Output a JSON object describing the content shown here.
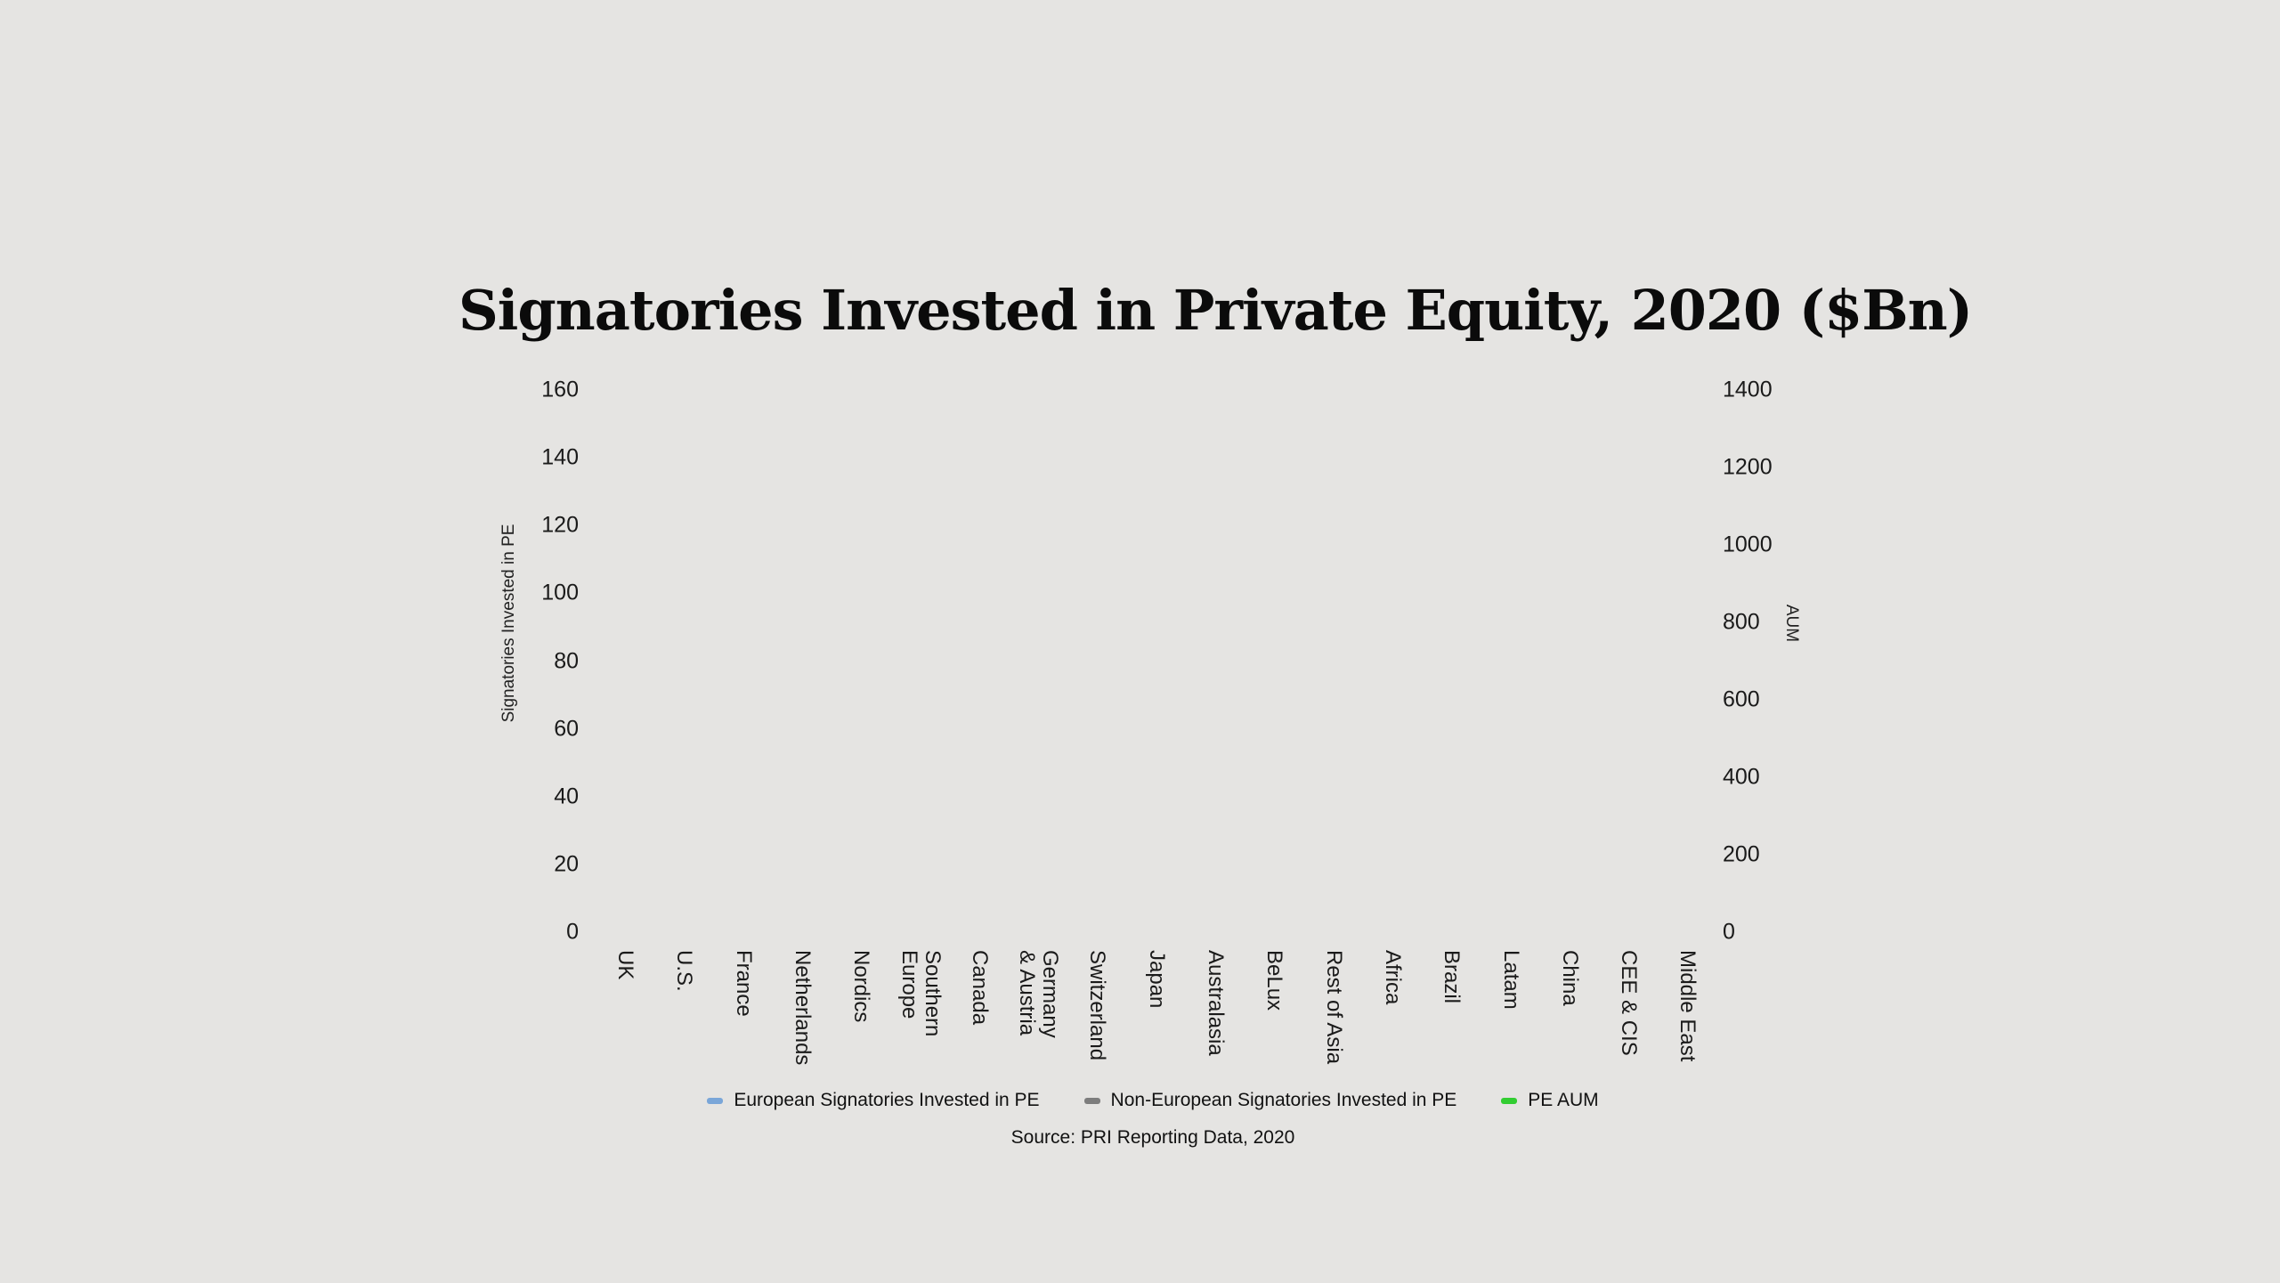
{
  "title": "Signatories Invested in Private Equity, 2020 ($Bn)",
  "source": "Source: PRI Reporting Data, 2020",
  "colors": {
    "background": "#e5e4e2",
    "title_text": "#0b0b0b",
    "axis_text": "#1a1a1a",
    "legend_blue": "#7aa6d8",
    "legend_gray": "#7d7d7d",
    "legend_green": "#32cd32"
  },
  "left_axis": {
    "title": "Signatories Invested in PE",
    "ticks": [
      "0",
      "20",
      "40",
      "60",
      "80",
      "100",
      "120",
      "140",
      "160"
    ]
  },
  "right_axis": {
    "title": "AUM",
    "ticks": [
      "0",
      "200",
      "400",
      "600",
      "800",
      "1000",
      "1200",
      "1400"
    ]
  },
  "x_axis": {
    "categories": [
      [
        "UK"
      ],
      [
        "U.S."
      ],
      [
        "France"
      ],
      [
        "Netherlands"
      ],
      [
        "Nordics"
      ],
      [
        "Southern",
        "Europe"
      ],
      [
        "Canada"
      ],
      [
        "Germany",
        "& Austria"
      ],
      [
        "Switzerland"
      ],
      [
        "Japan"
      ],
      [
        "Australasia"
      ],
      [
        "BeLux"
      ],
      [
        "Rest of Asia"
      ],
      [
        "Africa"
      ],
      [
        "Brazil"
      ],
      [
        "Latam"
      ],
      [
        "China"
      ],
      [
        "CEE & CIS"
      ],
      [
        "Middle East"
      ]
    ]
  },
  "legend": [
    {
      "label": "European Signatories Invested in PE",
      "color": "#7aa6d8"
    },
    {
      "label": "Non-European Signatories Invested in PE",
      "color": "#7d7d7d"
    },
    {
      "label": "PE AUM",
      "color": "#32cd32"
    }
  ],
  "chart_data": {
    "type": "bar",
    "title": "Signatories Invested in Private Equity, 2020 ($Bn)",
    "categories": [
      "UK",
      "U.S.",
      "France",
      "Netherlands",
      "Nordics",
      "Southern Europe",
      "Canada",
      "Germany & Austria",
      "Switzerland",
      "Japan",
      "Australasia",
      "BeLux",
      "Rest of Asia",
      "Africa",
      "Brazil",
      "Latam",
      "China",
      "CEE & CIS",
      "Middle East"
    ],
    "series": [
      {
        "name": "European Signatories Invested in PE",
        "axis": "left",
        "color": "#7aa6d8",
        "values": []
      },
      {
        "name": "Non-European Signatories Invested in PE",
        "axis": "left",
        "color": "#7d7d7d",
        "values": []
      },
      {
        "name": "PE AUM",
        "axis": "right",
        "color": "#32cd32",
        "values": []
      }
    ],
    "left_axis": {
      "label": "Signatories Invested in PE",
      "range": [
        0,
        160
      ],
      "ticks": [
        0,
        20,
        40,
        60,
        80,
        100,
        120,
        140,
        160
      ]
    },
    "right_axis": {
      "label": "AUM",
      "range": [
        0,
        1400
      ],
      "ticks": [
        0,
        200,
        400,
        600,
        800,
        1000,
        1200,
        1400
      ]
    },
    "grid": false,
    "legend_position": "bottom",
    "plot_rendered_empty": true,
    "source": "Source: PRI Reporting Data, 2020"
  }
}
